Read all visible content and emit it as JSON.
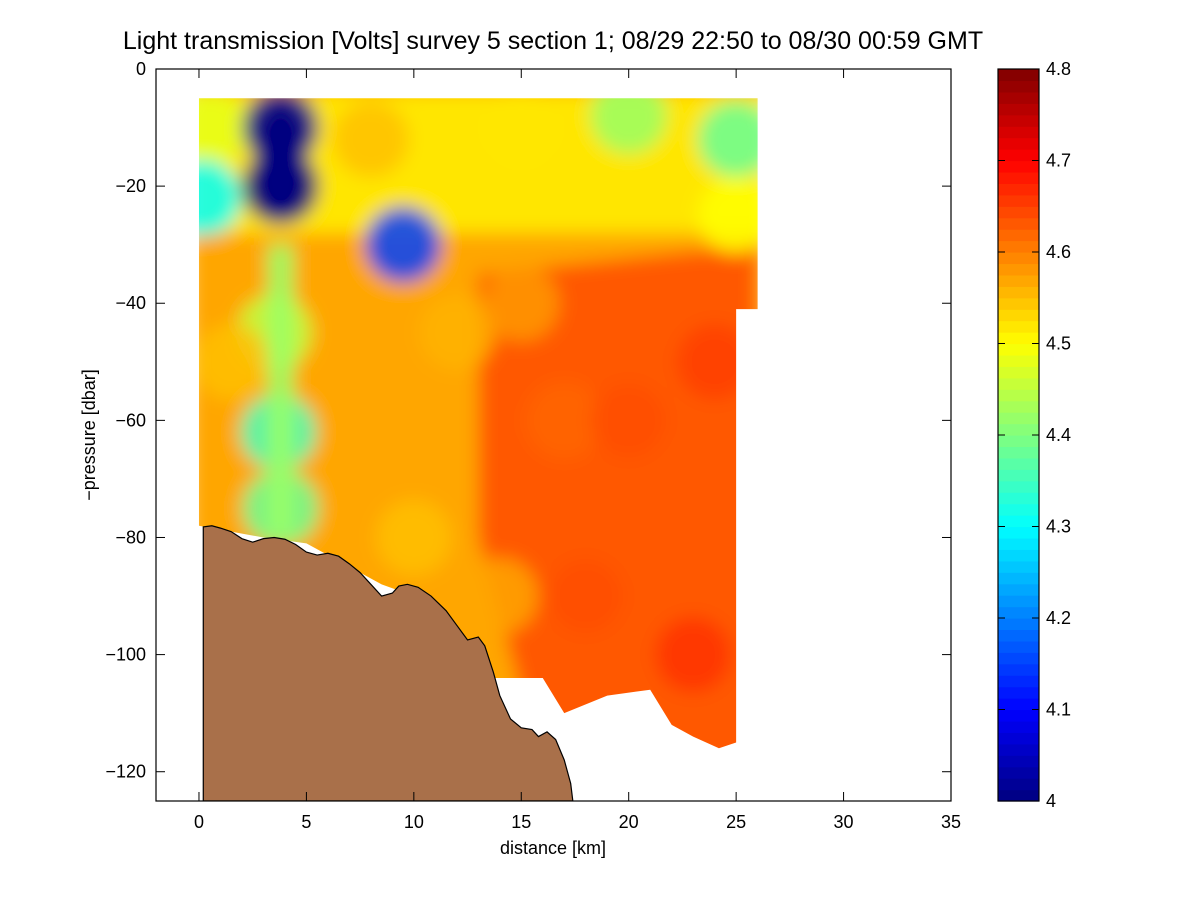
{
  "chart_data": {
    "type": "heatmap",
    "title": "Light transmission [Volts] survey 5 section 1; 08/29 22:50 to 08/30 00:59 GMT",
    "xlabel": "distance [km]",
    "ylabel": "−pressure [dbar]",
    "xlim": [
      -2,
      35
    ],
    "ylim": [
      -125,
      0
    ],
    "x_ticks": [
      0,
      5,
      10,
      15,
      20,
      25,
      30,
      35
    ],
    "x_tick_labels": [
      "0",
      "5",
      "10",
      "15",
      "20",
      "25",
      "30",
      "35"
    ],
    "y_ticks": [
      0,
      -20,
      -40,
      -60,
      -80,
      -100,
      -120
    ],
    "y_tick_labels": [
      "0",
      "−20",
      "−40",
      "−60",
      "−80",
      "−100",
      "−120"
    ],
    "grid": false,
    "colorbar": {
      "colormap": "jet",
      "range": [
        4.0,
        4.8
      ],
      "ticks": [
        4.0,
        4.1,
        4.2,
        4.3,
        4.4,
        4.5,
        4.6,
        4.7,
        4.8
      ],
      "tick_labels": [
        "4",
        "4.1",
        "4.2",
        "4.3",
        "4.4",
        "4.5",
        "4.6",
        "4.7",
        "4.8"
      ],
      "placement": "right"
    },
    "field_description_values": {
      "sample_points_km_dbar_volts": [
        [
          0.5,
          -10,
          4.48
        ],
        [
          3.8,
          -10,
          4.02
        ],
        [
          3.8,
          -20,
          4.0
        ],
        [
          0.2,
          -22,
          4.3
        ],
        [
          9.5,
          -30,
          4.15
        ],
        [
          8,
          -12,
          4.55
        ],
        [
          15,
          -10,
          4.52
        ],
        [
          20,
          -8,
          4.42
        ],
        [
          25,
          -12,
          4.38
        ],
        [
          25,
          -25,
          4.5
        ],
        [
          3.5,
          -45,
          4.45
        ],
        [
          3.7,
          -62,
          4.35
        ],
        [
          3.8,
          -75,
          4.38
        ],
        [
          1.5,
          -50,
          4.55
        ],
        [
          8,
          -50,
          4.57
        ],
        [
          12,
          -45,
          4.56
        ],
        [
          15,
          -40,
          4.58
        ],
        [
          17,
          -60,
          4.62
        ],
        [
          20,
          -60,
          4.64
        ],
        [
          24,
          -50,
          4.65
        ],
        [
          18,
          -90,
          4.64
        ],
        [
          23,
          -100,
          4.66
        ],
        [
          10,
          -80,
          4.55
        ],
        [
          14,
          -90,
          4.57
        ]
      ]
    },
    "data_boundary": {
      "top_dbar": -5,
      "bottom_profile": [
        [
          0,
          -78
        ],
        [
          3,
          -80
        ],
        [
          5,
          -81
        ],
        [
          7,
          -85
        ],
        [
          8.5,
          -88
        ],
        [
          10,
          -90
        ],
        [
          11,
          -93
        ],
        [
          12,
          -96
        ],
        [
          13,
          -100
        ],
        [
          13.5,
          -104
        ],
        [
          16,
          -104
        ],
        [
          17,
          -110
        ],
        [
          19,
          -107
        ],
        [
          21,
          -106
        ],
        [
          22,
          -112
        ],
        [
          23,
          -114
        ],
        [
          24.2,
          -116
        ],
        [
          25,
          -115
        ],
        [
          25,
          -41
        ],
        [
          26,
          -41
        ]
      ]
    },
    "seafloor": {
      "fill_color": "#A9704A",
      "profile_km_dbar": [
        [
          0.2,
          -125
        ],
        [
          0.2,
          -78.2
        ],
        [
          0.6,
          -78.0
        ],
        [
          1.0,
          -78.4
        ],
        [
          1.5,
          -79.0
        ],
        [
          2.0,
          -80.2
        ],
        [
          2.5,
          -80.8
        ],
        [
          3.0,
          -80.2
        ],
        [
          3.5,
          -80.0
        ],
        [
          4.0,
          -80.3
        ],
        [
          4.5,
          -81.2
        ],
        [
          5.0,
          -82.5
        ],
        [
          5.5,
          -83.0
        ],
        [
          6.0,
          -82.7
        ],
        [
          6.5,
          -83.2
        ],
        [
          7.0,
          -84.5
        ],
        [
          7.5,
          -86.0
        ],
        [
          8.0,
          -88.0
        ],
        [
          8.5,
          -90.0
        ],
        [
          9.0,
          -89.5
        ],
        [
          9.3,
          -88.3
        ],
        [
          9.7,
          -88.0
        ],
        [
          10.2,
          -88.5
        ],
        [
          10.8,
          -90.0
        ],
        [
          11.5,
          -92.5
        ],
        [
          12.0,
          -95.0
        ],
        [
          12.5,
          -97.5
        ],
        [
          13.0,
          -97.0
        ],
        [
          13.3,
          -98.5
        ],
        [
          13.7,
          -103.0
        ],
        [
          14.0,
          -107.0
        ],
        [
          14.5,
          -111.0
        ],
        [
          15.0,
          -112.5
        ],
        [
          15.5,
          -112.8
        ],
        [
          15.8,
          -114.0
        ],
        [
          16.2,
          -113.2
        ],
        [
          16.6,
          -114.5
        ],
        [
          17.0,
          -118.0
        ],
        [
          17.3,
          -122.0
        ],
        [
          17.4,
          -125
        ]
      ]
    }
  }
}
